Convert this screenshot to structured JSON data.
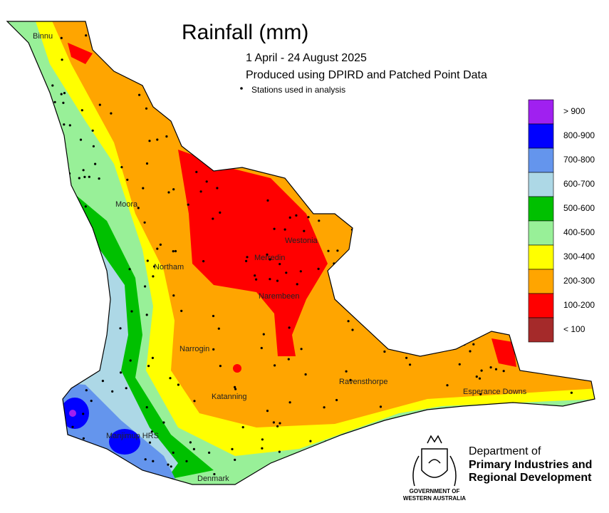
{
  "title": "Rainfall (mm)",
  "subtitle": [
    "1 April - 24 August 2025",
    "Produced using DPIRD and Patched Point Data"
  ],
  "stations_note": "Stations used in analysis",
  "legend": [
    {
      "label": "> 900",
      "color": "#a020f0"
    },
    {
      "label": "800-900",
      "color": "#0000ff"
    },
    {
      "label": "700-800",
      "color": "#6495ed"
    },
    {
      "label": "600-700",
      "color": "#add8e6"
    },
    {
      "label": "500-600",
      "color": "#00c000"
    },
    {
      "label": "400-500",
      "color": "#98f098"
    },
    {
      "label": "300-400",
      "color": "#ffff00"
    },
    {
      "label": "200-300",
      "color": "#ffa500"
    },
    {
      "label": "100-200",
      "color": "#ff0000"
    },
    {
      "label": "< 100",
      "color": "#a52a2a"
    }
  ],
  "places": [
    "Binnu",
    "Moora",
    "Northam",
    "Westonia",
    "Merredin",
    "Narembeen",
    "Narrogin",
    "Katanning",
    "Ravensthorpe",
    "Esperance Downs",
    "Manjimup HRS",
    "Denmark"
  ],
  "agency": {
    "name": [
      "Department of",
      "Primary Industries and",
      "Regional Development"
    ],
    "crest_caption": [
      "GOVERNMENT OF",
      "WESTERN AUSTRALIA"
    ]
  }
}
